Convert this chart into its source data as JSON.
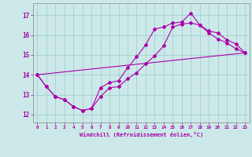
{
  "xlabel": "Windchill (Refroidissement éolien,°C)",
  "bg_color": "#cce8e8",
  "grid_color": "#99cccc",
  "line_color": "#aa00aa",
  "marker_color": "#aa00aa",
  "xlim": [
    -0.5,
    23.5
  ],
  "ylim": [
    11.6,
    17.6
  ],
  "yticks": [
    12,
    13,
    14,
    15,
    16,
    17
  ],
  "xticks": [
    0,
    1,
    2,
    3,
    4,
    5,
    6,
    7,
    8,
    9,
    10,
    11,
    12,
    13,
    14,
    15,
    16,
    17,
    18,
    19,
    20,
    21,
    22,
    23
  ],
  "curve1_x": [
    0,
    1,
    2,
    3,
    4,
    5,
    6,
    7,
    8,
    9,
    10,
    11,
    12,
    13,
    14,
    15,
    16,
    17,
    18,
    19,
    20,
    21,
    22,
    23
  ],
  "curve1_y": [
    14.0,
    13.4,
    12.9,
    12.75,
    12.4,
    12.2,
    12.3,
    12.9,
    13.35,
    13.4,
    13.8,
    14.1,
    14.55,
    14.95,
    15.45,
    16.4,
    16.55,
    16.6,
    16.5,
    16.1,
    15.8,
    15.6,
    15.3,
    15.1
  ],
  "curve2_x": [
    0,
    1,
    2,
    3,
    4,
    5,
    6,
    7,
    8,
    9,
    10,
    11,
    12,
    13,
    14,
    15,
    16,
    17,
    18,
    19,
    20,
    21,
    22,
    23
  ],
  "curve2_y": [
    14.0,
    13.4,
    12.9,
    12.75,
    12.4,
    12.2,
    12.3,
    13.35,
    13.6,
    13.7,
    14.35,
    14.9,
    15.5,
    16.3,
    16.4,
    16.6,
    16.65,
    17.1,
    16.5,
    16.2,
    16.1,
    15.75,
    15.55,
    15.1
  ],
  "curve3_x": [
    0,
    23
  ],
  "curve3_y": [
    14.0,
    15.1
  ]
}
